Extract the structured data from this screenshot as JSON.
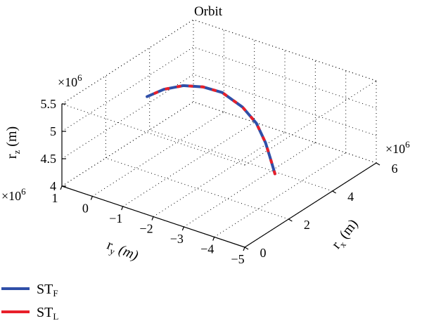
{
  "chart_data": {
    "type": "line",
    "title": "Orbit",
    "xlabel": {
      "main": "r",
      "sub": "x",
      "unit": " (m)"
    },
    "ylabel": {
      "main": "r",
      "sub": "y",
      "unit": " (m)"
    },
    "zlabel": {
      "main": "r",
      "sub": "z",
      "unit": " (m)"
    },
    "x_multiplier": "×10",
    "x_exponent": "6",
    "y_multiplier": "×10",
    "y_exponent": "6",
    "z_multiplier": "×10",
    "z_exponent": "6",
    "xlim": [
      0,
      6
    ],
    "ylim": [
      -5,
      1
    ],
    "zlim": [
      4,
      5.5
    ],
    "x_ticks": [
      "0",
      "2",
      "4",
      "6"
    ],
    "y_ticks": [
      "1",
      "0",
      "−1",
      "−2",
      "−3",
      "−4",
      "−5"
    ],
    "z_ticks": [
      "4",
      "4.5",
      "5",
      "5.5"
    ],
    "grid": true,
    "legend_placement": "bottom-left",
    "series": [
      {
        "name": {
          "main": "ST",
          "sub": "F"
        },
        "color": "#2f4fa8",
        "points": [
          [
            3.6,
            -3.4,
            4.12
          ],
          [
            3.7,
            -3.2,
            4.3
          ],
          [
            3.8,
            -2.95,
            4.55
          ],
          [
            3.8,
            -2.65,
            4.85
          ],
          [
            3.65,
            -2.3,
            5.12
          ],
          [
            3.35,
            -1.85,
            5.38
          ],
          [
            2.95,
            -1.5,
            5.52
          ],
          [
            2.55,
            -1.15,
            5.58
          ],
          [
            2.15,
            -0.8,
            5.55
          ],
          [
            1.8,
            -0.5,
            5.45
          ]
        ]
      },
      {
        "name": {
          "main": "ST",
          "sub": "L"
        },
        "color": "#e8202a",
        "points": [
          [
            3.6,
            -3.4,
            4.12
          ],
          [
            3.7,
            -3.2,
            4.3
          ],
          [
            3.8,
            -2.95,
            4.55
          ],
          [
            3.8,
            -2.65,
            4.85
          ],
          [
            3.65,
            -2.3,
            5.12
          ],
          [
            3.35,
            -1.85,
            5.38
          ],
          [
            2.95,
            -1.5,
            5.52
          ],
          [
            2.55,
            -1.15,
            5.58
          ],
          [
            2.15,
            -0.8,
            5.55
          ],
          [
            1.8,
            -0.5,
            5.45
          ]
        ]
      }
    ]
  }
}
